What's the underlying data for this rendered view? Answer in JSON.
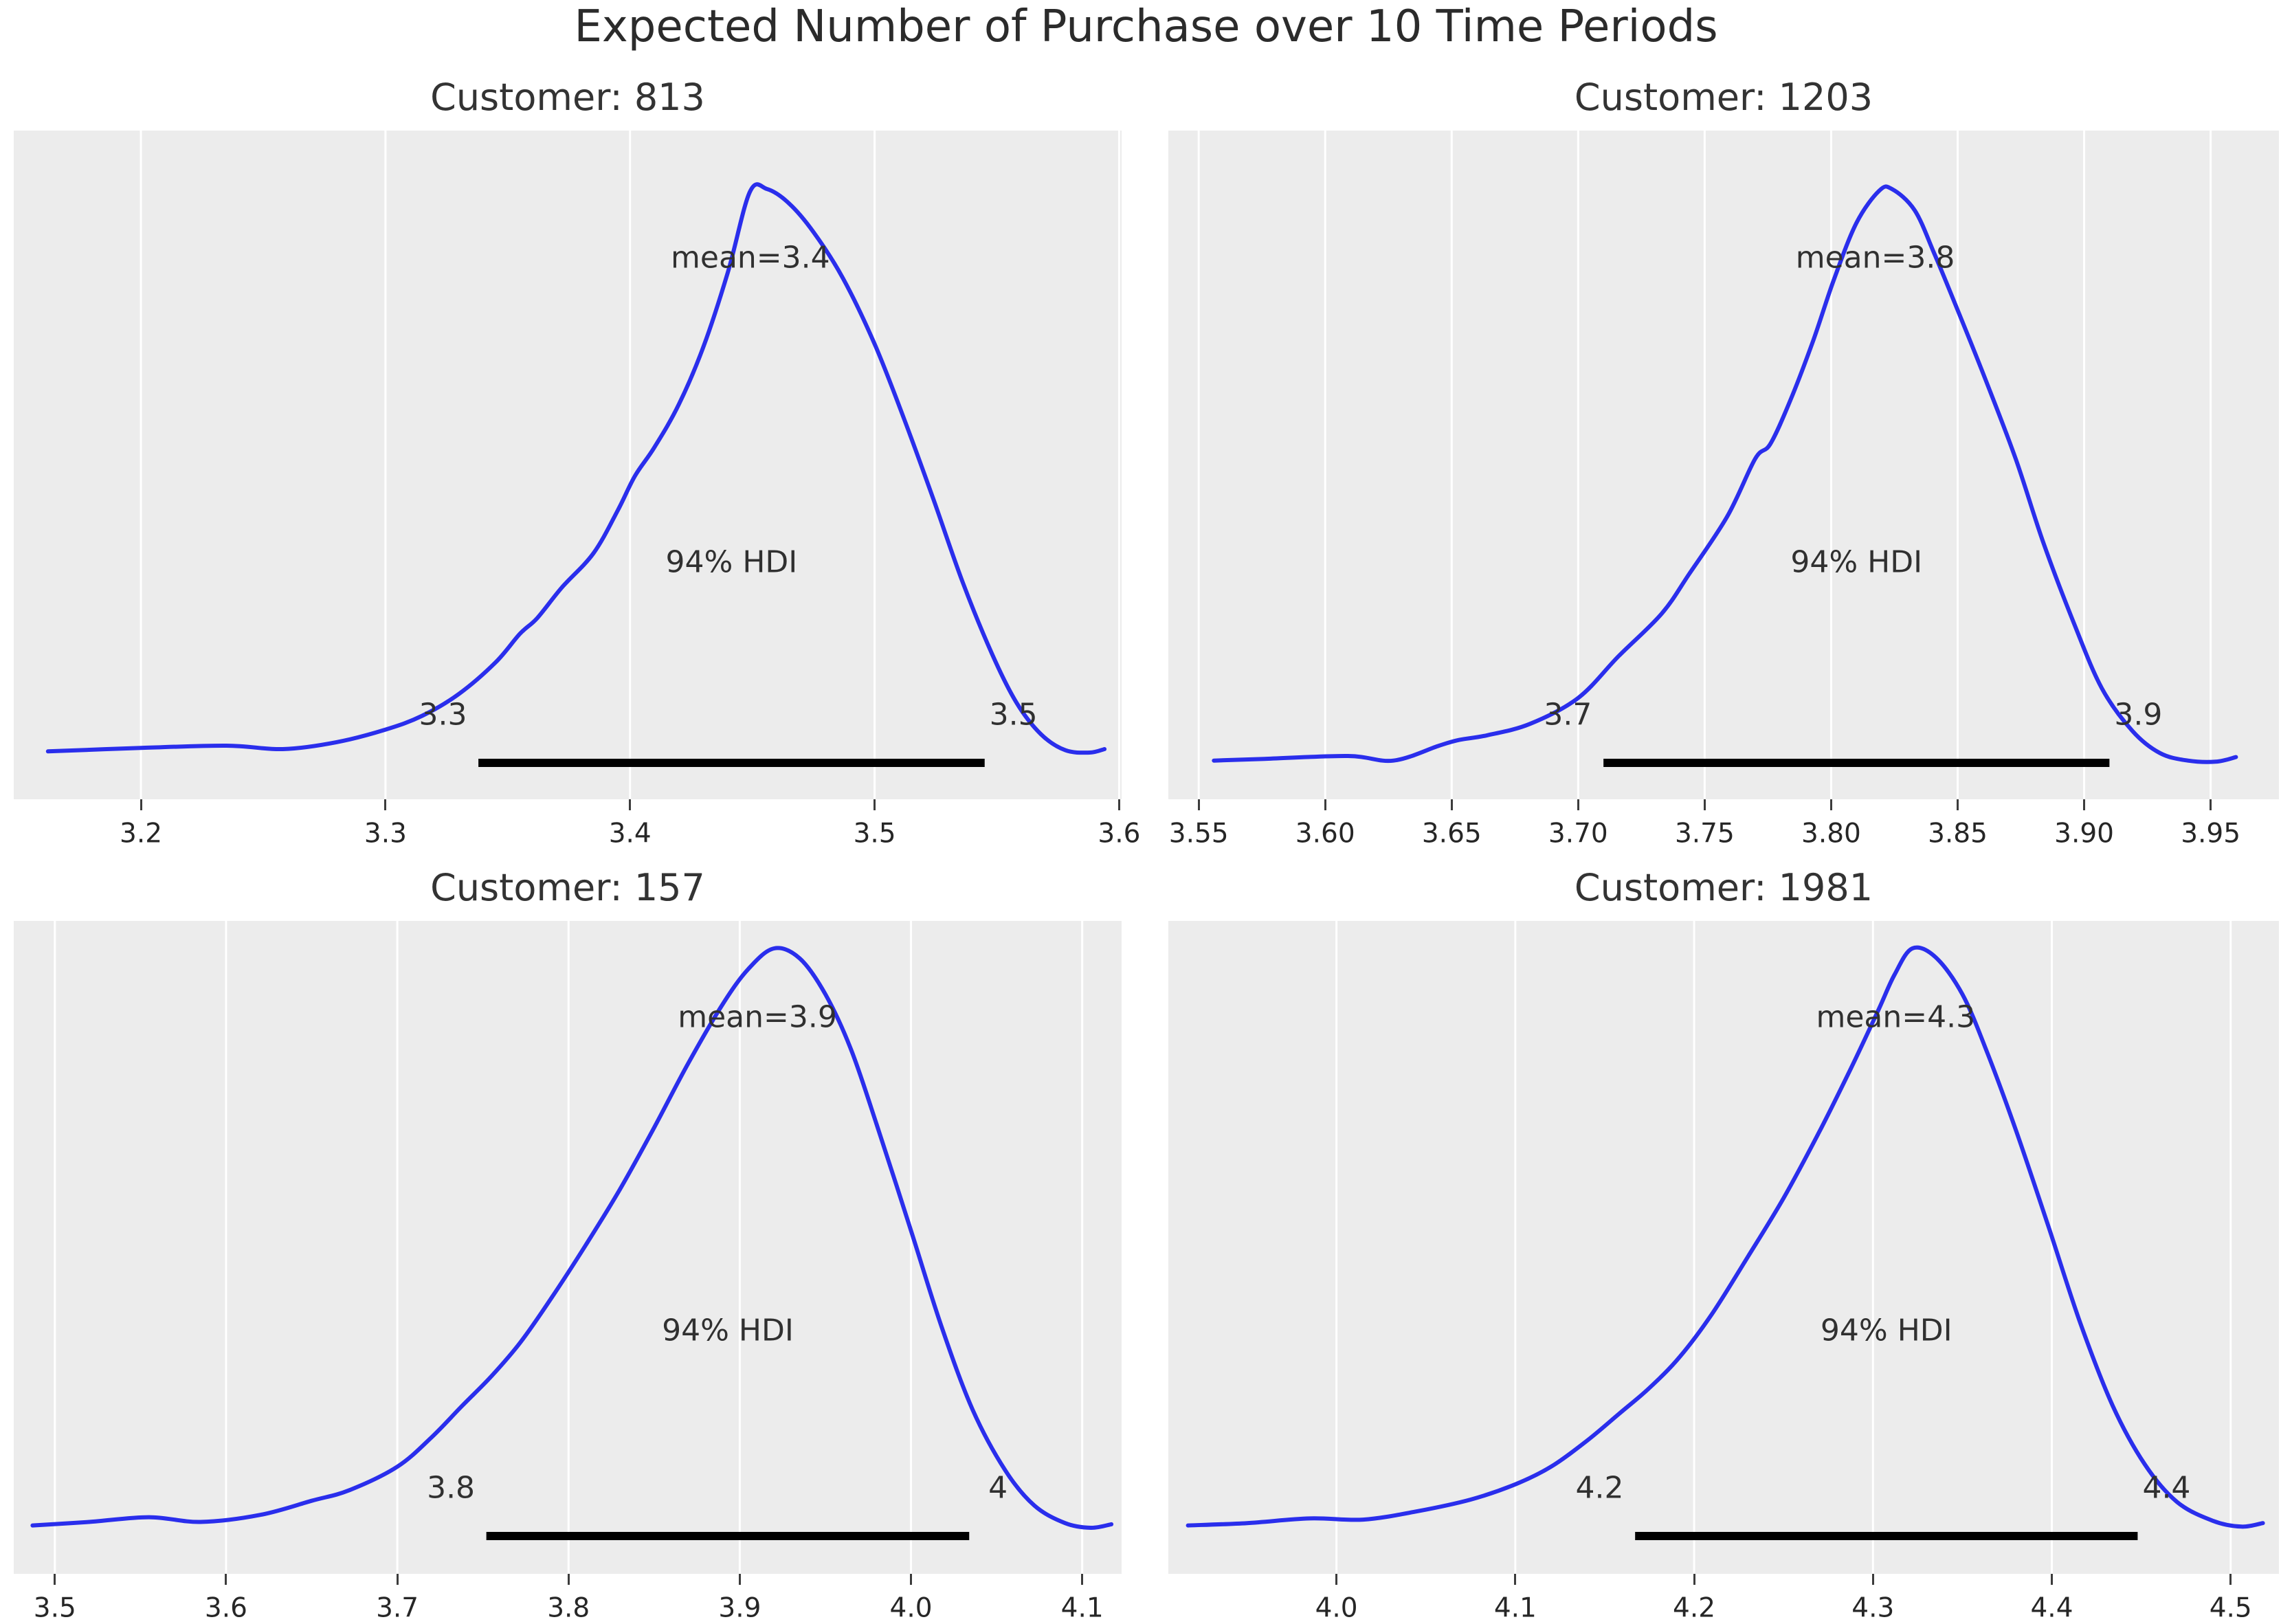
{
  "figure": {
    "title": "Expected Number of Purchase over 10 Time Periods",
    "background_color": "#ffffff",
    "panel_color": "#ececec",
    "grid_color": "#ffffff",
    "curve_color": "#2a2eec",
    "hdi_bar_color": "#000000",
    "text_color": "#303030"
  },
  "chart_data": {
    "type": "line",
    "title": "Expected Number of Purchase over 10 Time Periods",
    "description": "2x2 grid of posterior density (KDE) plots with 94% HDI bars",
    "legend": "none",
    "grid": "vertical white gridlines on gray panels",
    "subplots": [
      {
        "title": "Customer: 813",
        "mean": 3.4,
        "mean_label": "mean=3.4",
        "hdi_text": "94% HDI",
        "hdi": [
          3.338,
          3.545
        ],
        "hdi_labels": [
          "3.3",
          "3.5"
        ],
        "x_axis": {
          "min": 3.148,
          "max": 3.601,
          "ticks": [
            3.2,
            3.3,
            3.4,
            3.5,
            3.6
          ],
          "tick_labels": [
            "3.2",
            "3.3",
            "3.4",
            "3.5",
            "3.6"
          ]
        },
        "kde": [
          [
            3.162,
            0.02
          ],
          [
            3.2,
            0.026
          ],
          [
            3.235,
            0.03
          ],
          [
            3.258,
            0.024
          ],
          [
            3.28,
            0.036
          ],
          [
            3.3,
            0.058
          ],
          [
            3.315,
            0.082
          ],
          [
            3.33,
            0.12
          ],
          [
            3.345,
            0.175
          ],
          [
            3.355,
            0.225
          ],
          [
            3.362,
            0.252
          ],
          [
            3.372,
            0.305
          ],
          [
            3.385,
            0.365
          ],
          [
            3.395,
            0.44
          ],
          [
            3.402,
            0.5
          ],
          [
            3.41,
            0.55
          ],
          [
            3.42,
            0.625
          ],
          [
            3.43,
            0.725
          ],
          [
            3.44,
            0.855
          ],
          [
            3.449,
            0.995
          ],
          [
            3.456,
            1.0
          ],
          [
            3.465,
            0.975
          ],
          [
            3.475,
            0.925
          ],
          [
            3.487,
            0.845
          ],
          [
            3.5,
            0.73
          ],
          [
            3.512,
            0.6
          ],
          [
            3.524,
            0.46
          ],
          [
            3.536,
            0.315
          ],
          [
            3.548,
            0.19
          ],
          [
            3.558,
            0.105
          ],
          [
            3.568,
            0.05
          ],
          [
            3.578,
            0.022
          ],
          [
            3.588,
            0.018
          ],
          [
            3.594,
            0.024
          ]
        ]
      },
      {
        "title": "Customer: 1203",
        "mean": 3.8,
        "mean_label": "mean=3.8",
        "hdi_text": "94% HDI",
        "hdi": [
          3.71,
          3.91
        ],
        "hdi_labels": [
          "3.7",
          "3.9"
        ],
        "x_axis": {
          "min": 3.538,
          "max": 3.977,
          "ticks": [
            3.55,
            3.6,
            3.65,
            3.7,
            3.75,
            3.8,
            3.85,
            3.9,
            3.95
          ],
          "tick_labels": [
            "3.55",
            "3.60",
            "3.65",
            "3.70",
            "3.75",
            "3.80",
            "3.85",
            "3.90",
            "3.95"
          ]
        },
        "kde": [
          [
            3.556,
            0.004
          ],
          [
            3.576,
            0.007
          ],
          [
            3.609,
            0.012
          ],
          [
            3.627,
            0.004
          ],
          [
            3.645,
            0.03
          ],
          [
            3.653,
            0.04
          ],
          [
            3.664,
            0.048
          ],
          [
            3.681,
            0.068
          ],
          [
            3.7,
            0.113
          ],
          [
            3.716,
            0.186
          ],
          [
            3.733,
            0.26
          ],
          [
            3.744,
            0.33
          ],
          [
            3.759,
            0.43
          ],
          [
            3.77,
            0.53
          ],
          [
            3.776,
            0.556
          ],
          [
            3.784,
            0.633
          ],
          [
            3.793,
            0.737
          ],
          [
            3.801,
            0.841
          ],
          [
            3.81,
            0.941
          ],
          [
            3.819,
            0.997
          ],
          [
            3.824,
            1.0
          ],
          [
            3.833,
            0.963
          ],
          [
            3.841,
            0.885
          ],
          [
            3.85,
            0.789
          ],
          [
            3.861,
            0.668
          ],
          [
            3.873,
            0.529
          ],
          [
            3.884,
            0.382
          ],
          [
            3.896,
            0.243
          ],
          [
            3.907,
            0.13
          ],
          [
            3.919,
            0.056
          ],
          [
            3.93,
            0.017
          ],
          [
            3.941,
            0.004
          ],
          [
            3.952,
            0.002
          ],
          [
            3.96,
            0.01
          ]
        ]
      },
      {
        "title": "Customer: 157",
        "mean": 3.9,
        "mean_label": "mean=3.9",
        "hdi_text": "94% HDI",
        "hdi": [
          3.752,
          4.034
        ],
        "hdi_labels": [
          "3.8",
          "4"
        ],
        "x_axis": {
          "min": 3.476,
          "max": 4.123,
          "ticks": [
            3.5,
            3.6,
            3.7,
            3.8,
            3.9,
            4.0,
            4.1
          ],
          "tick_labels": [
            "3.5",
            "3.6",
            "3.7",
            "3.8",
            "3.9",
            "4.0",
            "4.1"
          ]
        },
        "kde": [
          [
            3.487,
            0.018
          ],
          [
            3.52,
            0.024
          ],
          [
            3.555,
            0.032
          ],
          [
            3.585,
            0.024
          ],
          [
            3.62,
            0.036
          ],
          [
            3.65,
            0.06
          ],
          [
            3.672,
            0.078
          ],
          [
            3.7,
            0.118
          ],
          [
            3.72,
            0.168
          ],
          [
            3.738,
            0.222
          ],
          [
            3.755,
            0.272
          ],
          [
            3.772,
            0.33
          ],
          [
            3.79,
            0.405
          ],
          [
            3.81,
            0.495
          ],
          [
            3.83,
            0.59
          ],
          [
            3.85,
            0.695
          ],
          [
            3.87,
            0.805
          ],
          [
            3.89,
            0.905
          ],
          [
            3.905,
            0.965
          ],
          [
            3.92,
            1.0
          ],
          [
            3.935,
            0.983
          ],
          [
            3.95,
            0.922
          ],
          [
            3.965,
            0.828
          ],
          [
            3.98,
            0.7
          ],
          [
            4.0,
            0.52
          ],
          [
            4.018,
            0.355
          ],
          [
            4.036,
            0.215
          ],
          [
            4.055,
            0.112
          ],
          [
            4.072,
            0.052
          ],
          [
            4.09,
            0.022
          ],
          [
            4.105,
            0.014
          ],
          [
            4.117,
            0.02
          ]
        ]
      },
      {
        "title": "Customer: 1981",
        "mean": 4.3,
        "mean_label": "mean=4.3",
        "hdi_text": "94% HDI",
        "hdi": [
          4.167,
          4.448
        ],
        "hdi_labels": [
          "4.2",
          "4.4"
        ],
        "x_axis": {
          "min": 3.906,
          "max": 4.527,
          "ticks": [
            4.0,
            4.1,
            4.2,
            4.3,
            4.4,
            4.5
          ],
          "tick_labels": [
            "4.0",
            "4.1",
            "4.2",
            "4.3",
            "4.4",
            "4.5"
          ]
        },
        "kde": [
          [
            3.917,
            0.018
          ],
          [
            3.95,
            0.022
          ],
          [
            3.985,
            0.03
          ],
          [
            4.015,
            0.028
          ],
          [
            4.045,
            0.042
          ],
          [
            4.075,
            0.062
          ],
          [
            4.1,
            0.088
          ],
          [
            4.12,
            0.118
          ],
          [
            4.14,
            0.162
          ],
          [
            4.158,
            0.208
          ],
          [
            4.175,
            0.252
          ],
          [
            4.192,
            0.305
          ],
          [
            4.21,
            0.378
          ],
          [
            4.23,
            0.475
          ],
          [
            4.25,
            0.575
          ],
          [
            4.27,
            0.688
          ],
          [
            4.288,
            0.798
          ],
          [
            4.303,
            0.895
          ],
          [
            4.312,
            0.955
          ],
          [
            4.322,
            1.0
          ],
          [
            4.335,
            0.985
          ],
          [
            4.35,
            0.922
          ],
          [
            4.364,
            0.822
          ],
          [
            4.38,
            0.69
          ],
          [
            4.398,
            0.528
          ],
          [
            4.416,
            0.362
          ],
          [
            4.434,
            0.222
          ],
          [
            4.452,
            0.122
          ],
          [
            4.47,
            0.058
          ],
          [
            4.49,
            0.026
          ],
          [
            4.506,
            0.016
          ],
          [
            4.518,
            0.022
          ]
        ]
      }
    ]
  }
}
